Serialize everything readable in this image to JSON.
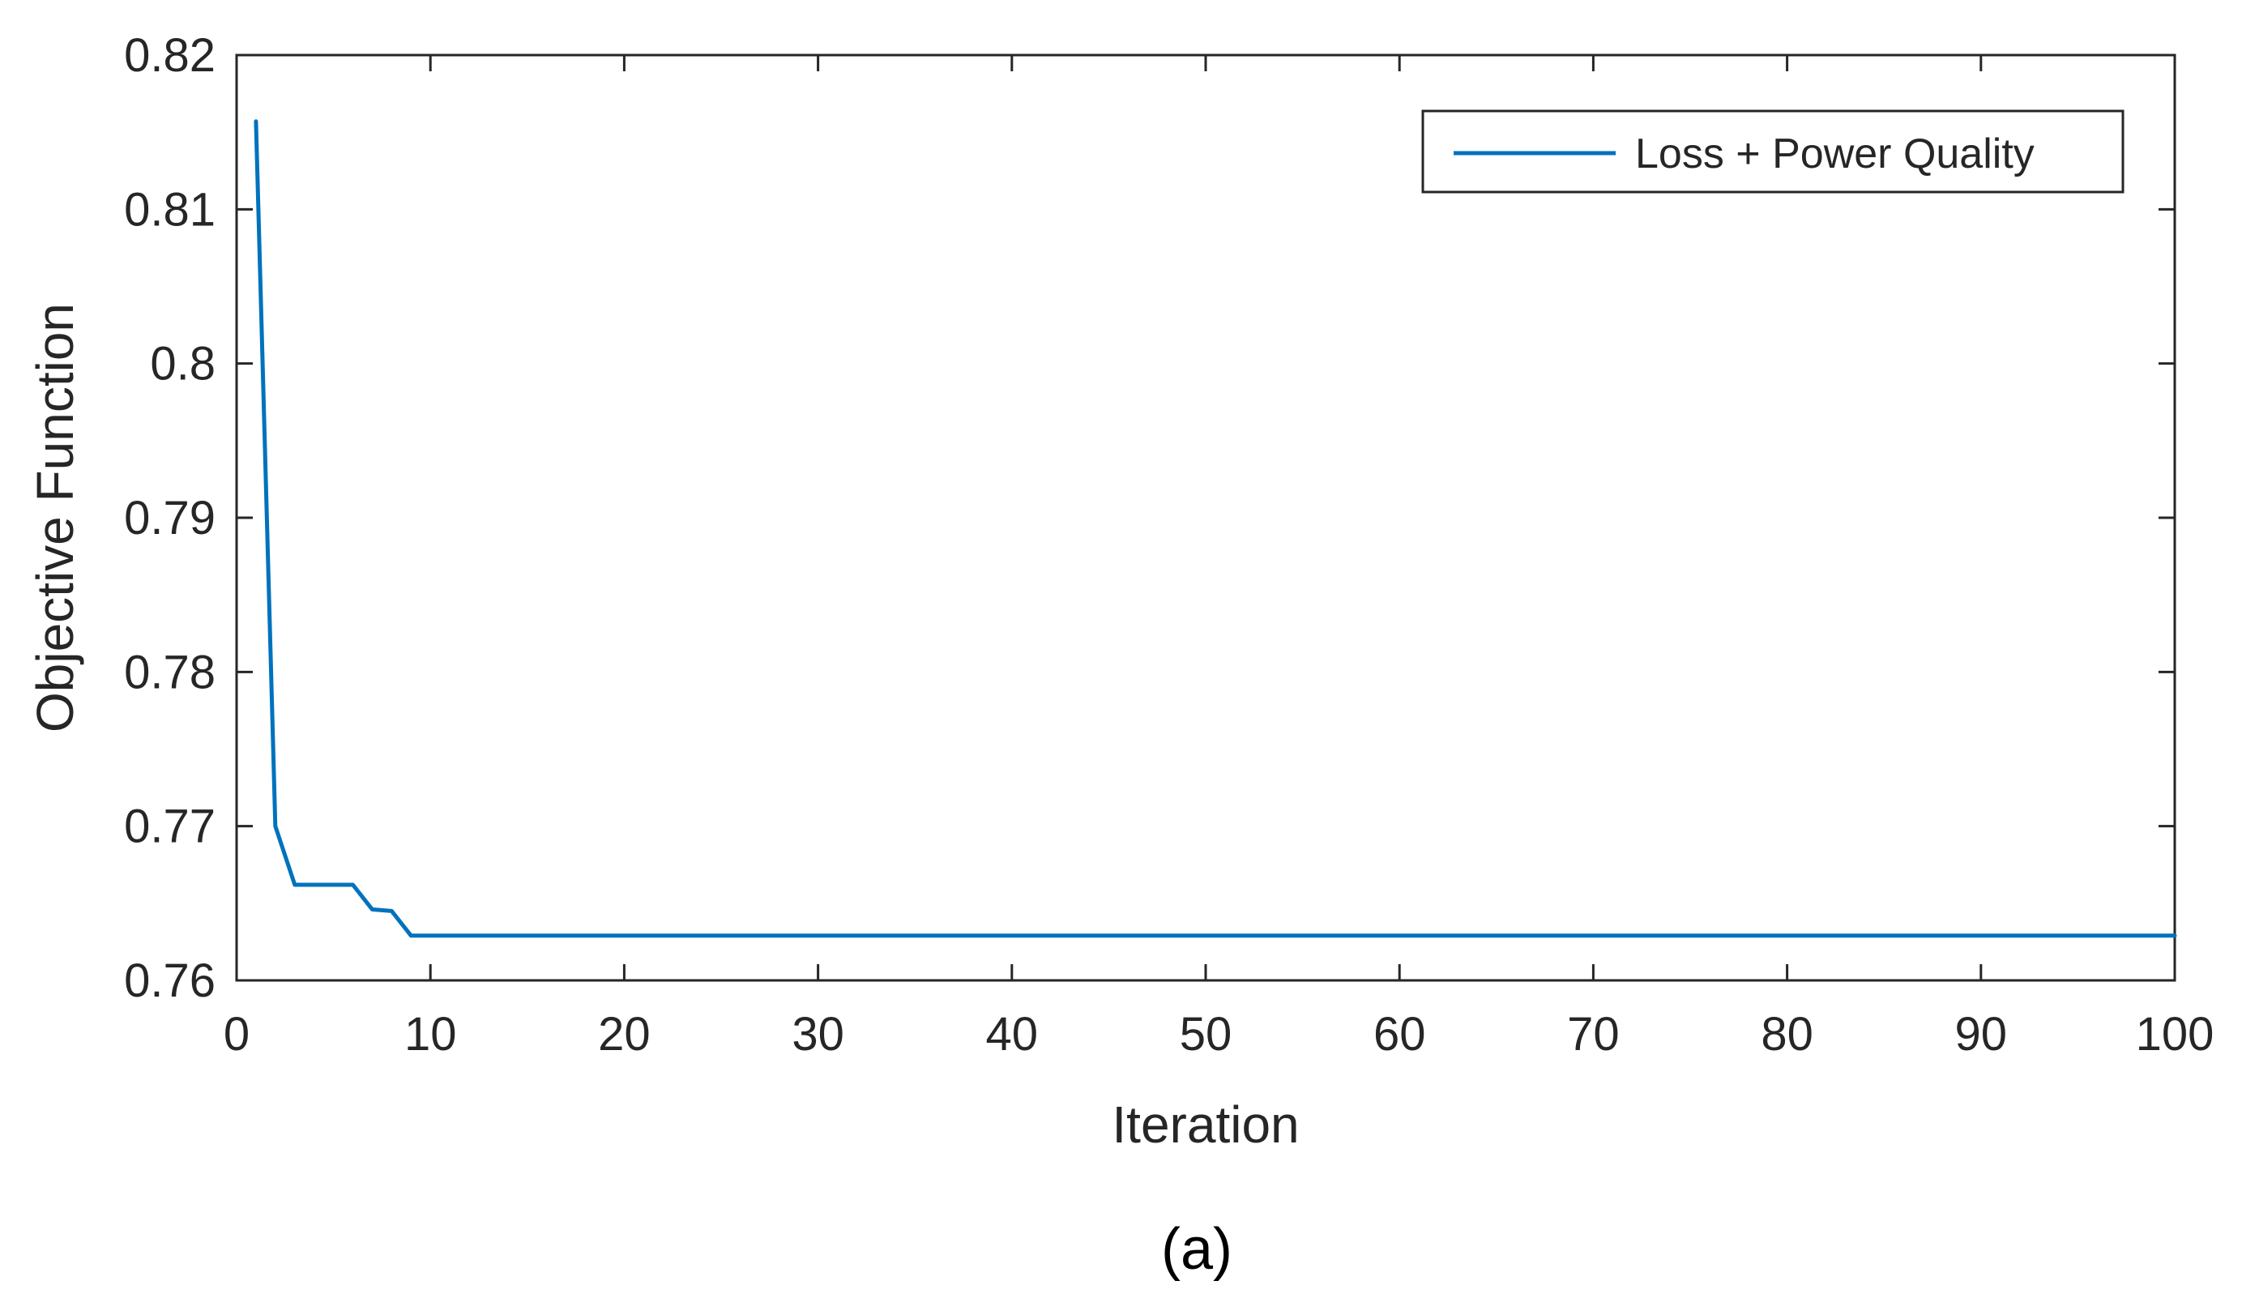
{
  "chart_data": {
    "type": "line",
    "xlabel": "Iteration",
    "ylabel": "Objective Function",
    "xlim": [
      0,
      100
    ],
    "ylim": [
      0.76,
      0.82
    ],
    "xticks": [
      0,
      10,
      20,
      30,
      40,
      50,
      60,
      70,
      80,
      90,
      100
    ],
    "yticks": [
      0.76,
      0.77,
      0.78,
      0.79,
      0.8,
      0.81,
      0.82
    ],
    "xtick_labels": [
      "0",
      "10",
      "20",
      "30",
      "40",
      "50",
      "60",
      "70",
      "80",
      "90",
      "100"
    ],
    "ytick_labels": [
      "0.76",
      "0.77",
      "0.78",
      "0.79",
      "0.8",
      "0.81",
      "0.82"
    ],
    "grid": false,
    "legend_position": "top-right",
    "series": [
      {
        "name": "Loss + Power Quality",
        "color": "#0072BD",
        "x": [
          1,
          2,
          3,
          4,
          5,
          6,
          7,
          8,
          9,
          10,
          20,
          30,
          40,
          50,
          60,
          70,
          80,
          90,
          100
        ],
        "y": [
          0.8157,
          0.77,
          0.7662,
          0.7662,
          0.7662,
          0.7662,
          0.7646,
          0.7645,
          0.7629,
          0.7629,
          0.7629,
          0.7629,
          0.7629,
          0.7629,
          0.7629,
          0.7629,
          0.7629,
          0.7629,
          0.7629
        ]
      }
    ]
  },
  "caption": "(a)",
  "colors": {
    "axis": "#262626",
    "line": "#0072BD",
    "background": "#ffffff"
  }
}
